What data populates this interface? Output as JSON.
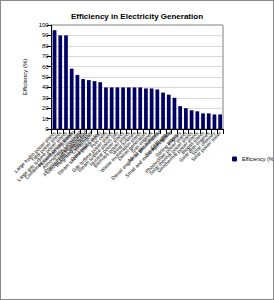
{
  "chart_data": {
    "type": "bar",
    "title": "Efficiency in Electricity Generation",
    "y_label": "Efficiency (%)",
    "categories": [
      "Large hydro power plants",
      "Tidal power plants",
      "Large gas turbine power plants",
      "Combined cycle power plants",
      "Pulverized coal boilers (supercritical)",
      "Atmospheric Circulating Fluidized Bed Combustion",
      "Pressurized Fluidized Bed Combustion",
      "Integrated Gasification Combined Cycle",
      "Steam turbine plants (coal)",
      "Fuel cells",
      "Gas turbine power plants",
      "Steam turbine plants (oil)",
      "Nuclear power plants",
      "Biomass power plants",
      "Wind turbines",
      "Waste incineration plants",
      "Diesel generators",
      "Gas engines",
      "Micro gas turbines",
      "Diesel engine as decentralized CHP unit",
      "Steam engines",
      "Small and micro hydro power plants",
      "Stirling engines",
      "Photovoltaic power plants",
      "Solar thermal power plants",
      "Geothermal power plants",
      "Biogas plants",
      "Solar dish engines",
      "Solar chimney",
      "Solar power tower"
    ],
    "series": [
      {
        "name": "Efficiency (%)",
        "color": "#000066",
        "values": [
          95,
          90,
          90,
          58,
          52,
          48,
          47,
          46,
          45,
          40,
          40,
          40,
          40,
          40,
          40,
          40,
          39,
          39,
          38,
          35,
          33,
          30,
          22,
          20,
          18,
          17,
          15,
          15,
          14,
          14
        ]
      }
    ],
    "ylim": [
      0,
      100
    ],
    "yticks": [
      0,
      10,
      20,
      30,
      40,
      50,
      60,
      70,
      80,
      90,
      100
    ],
    "grid": true,
    "legend": "right"
  }
}
